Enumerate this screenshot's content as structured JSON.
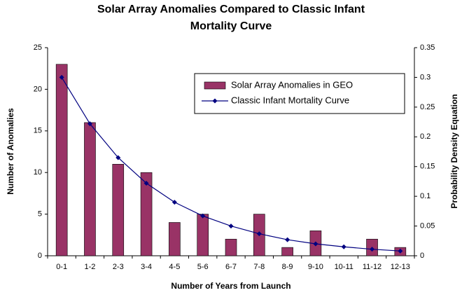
{
  "chart_data": {
    "type": "bar",
    "title": "Solar Array Anomalies Compared to Classic Infant Mortality Curve",
    "x_label": "Number of Years from Launch",
    "y_label": "Number of Anomalies",
    "y2_label": "Probability Density Equation",
    "categories": [
      "0-1",
      "1-2",
      "2-3",
      "3-4",
      "4-5",
      "5-6",
      "6-7",
      "7-8",
      "8-9",
      "9-10",
      "10-11",
      "11-12",
      "12-13"
    ],
    "series": [
      {
        "name": "Solar Array Anomalies in GEO",
        "type": "bar",
        "color": "#993366",
        "values": [
          23,
          16,
          11,
          10,
          4,
          5,
          2,
          5,
          1,
          3,
          0,
          2,
          1
        ]
      },
      {
        "name": "Classic Infant Mortality Curve",
        "type": "line",
        "axis": "y2",
        "color": "#000080",
        "values": [
          0.3,
          0.222,
          0.165,
          0.122,
          0.09,
          0.067,
          0.05,
          0.037,
          0.027,
          0.02,
          0.015,
          0.011,
          0.008
        ]
      }
    ],
    "ylim": [
      0,
      25
    ],
    "yticks": [
      0,
      5,
      10,
      15,
      20,
      25
    ],
    "y2lim": [
      0,
      0.35
    ],
    "y2ticks": [
      0,
      0.05,
      0.1,
      0.15,
      0.2,
      0.25,
      0.3,
      0.35
    ],
    "grid": false
  }
}
